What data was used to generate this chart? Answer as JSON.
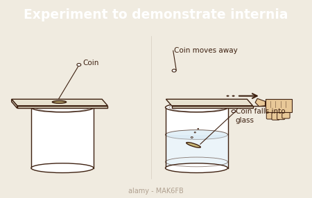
{
  "title": "Experiment to demonstrate internia",
  "title_bg": "#5c1a1a",
  "title_color": "#ffffff",
  "bg_color": "#f0ebe0",
  "line_color": "#3d2010",
  "label_coin": "Coin",
  "label_coin_moves": "Coin moves away",
  "label_coin_falls": "Coin falls into\nglass",
  "bottom_text": "alamy - MAK6FB",
  "bottom_bg": "#2a1008",
  "bottom_color": "#b0a090",
  "glass_fc": "#ffffff",
  "card_fc": "#e8e0d0",
  "coin_fc": "#c8b080",
  "hand_fc": "#e8c898"
}
